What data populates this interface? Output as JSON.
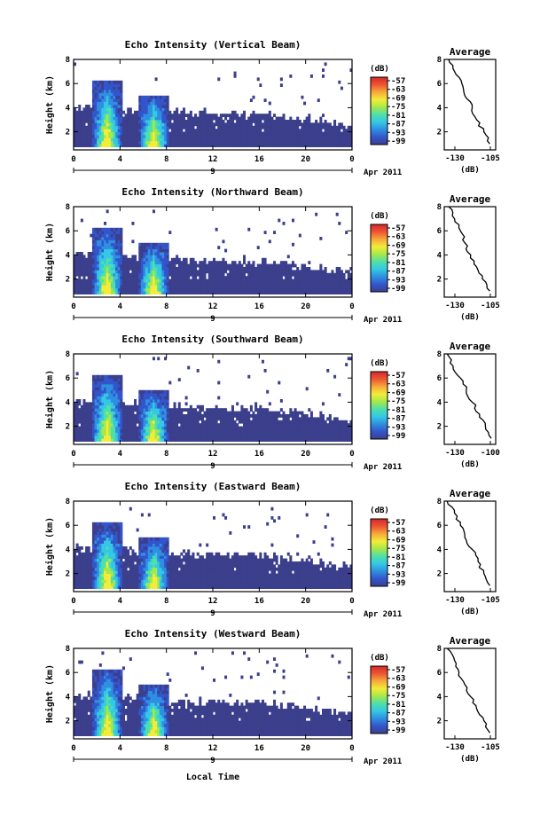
{
  "figure": {
    "xlabel": "Local Time",
    "date_label": "Apr 2011",
    "day_tick": "9",
    "ylabel": "Height (km)",
    "colorbar_unit": "(dB)",
    "colorbar_ticks": [
      "-57",
      "-63",
      "-69",
      "-75",
      "-81",
      "-87",
      "-93",
      "-99"
    ],
    "colormap": [
      "#3b3f8c",
      "#3355cc",
      "#2f8fe0",
      "#35c7e6",
      "#4fe0a8",
      "#a6e84a",
      "#f3ec3a",
      "#f7a93a",
      "#ee5533",
      "#d4282a"
    ],
    "x_ticks": [
      "0",
      "4",
      "8",
      "12",
      "16",
      "20",
      "0"
    ],
    "y_ticks": [
      "2",
      "4",
      "6",
      "8"
    ],
    "avg_title": "Average",
    "avg_xlabel": "(dB)"
  },
  "chart_data": [
    {
      "type": "heatmap",
      "title": "Echo Intensity (Vertical Beam)",
      "xlabel": "Local Time",
      "ylabel": "Height (km)",
      "xlim": [
        0,
        24
      ],
      "ylim": [
        0.5,
        8
      ],
      "colorbar_range": [
        -99,
        -57
      ],
      "bursts": [
        {
          "t": 2.8,
          "top": 6.2
        },
        {
          "t": 6.8,
          "top": 5.0
        }
      ],
      "profile": {
        "title": "Average",
        "xlabel": "(dB)",
        "xticks": [
          "-130",
          "-105"
        ],
        "xlim": [
          -135,
          -100
        ],
        "height": [
          1,
          2,
          3,
          4,
          5,
          6,
          7,
          8
        ],
        "value": [
          -104,
          -108,
          -113,
          -116,
          -121,
          -123,
          -128,
          -132
        ]
      }
    },
    {
      "type": "heatmap",
      "title": "Echo Intensity (Northward Beam)",
      "xlabel": "Local Time",
      "ylabel": "Height (km)",
      "xlim": [
        0,
        24
      ],
      "ylim": [
        0.5,
        8
      ],
      "colorbar_range": [
        -99,
        -57
      ],
      "bursts": [
        {
          "t": 2.8,
          "top": 6.2
        },
        {
          "t": 6.8,
          "top": 5.0
        }
      ],
      "profile": {
        "title": "Average",
        "xlabel": "(dB)",
        "xticks": [
          "-130",
          "-105"
        ],
        "xlim": [
          -135,
          -100
        ],
        "height": [
          1,
          2,
          3,
          4,
          5,
          6,
          7,
          8
        ],
        "value": [
          -104,
          -109,
          -113,
          -117,
          -121,
          -124,
          -128,
          -132
        ]
      }
    },
    {
      "type": "heatmap",
      "title": "Echo Intensity (Southward Beam)",
      "xlabel": "Local Time",
      "ylabel": "Height (km)",
      "xlim": [
        0,
        24
      ],
      "ylim": [
        0.5,
        8
      ],
      "colorbar_range": [
        -99,
        -57
      ],
      "bursts": [
        {
          "t": 2.8,
          "top": 6.2
        },
        {
          "t": 6.8,
          "top": 5.0
        }
      ],
      "profile": {
        "title": "Average",
        "xlabel": "(dB)",
        "xticks": [
          "-130",
          "-100"
        ],
        "xlim": [
          -135,
          -100
        ],
        "height": [
          1,
          2,
          3,
          4,
          5,
          6,
          7,
          8
        ],
        "value": [
          -103,
          -107,
          -111,
          -116,
          -120,
          -124,
          -129,
          -133
        ]
      }
    },
    {
      "type": "heatmap",
      "title": "Echo Intensity (Eastward Beam)",
      "xlabel": "Local Time",
      "ylabel": "Height (km)",
      "xlim": [
        0,
        24
      ],
      "ylim": [
        0.5,
        8
      ],
      "colorbar_range": [
        -99,
        -57
      ],
      "bursts": [
        {
          "t": 2.8,
          "top": 6.2
        },
        {
          "t": 6.8,
          "top": 5.0
        }
      ],
      "profile": {
        "title": "Average",
        "xlabel": "(dB)",
        "xticks": [
          "-130",
          "-105"
        ],
        "xlim": [
          -135,
          -100
        ],
        "height": [
          1,
          2,
          3,
          4,
          5,
          6,
          7,
          8
        ],
        "value": [
          -104,
          -108,
          -112,
          -116,
          -121,
          -124,
          -128,
          -133
        ]
      }
    },
    {
      "type": "heatmap",
      "title": "Echo Intensity (Westward Beam)",
      "xlabel": "Local Time",
      "ylabel": "Height (km)",
      "xlim": [
        0,
        24
      ],
      "ylim": [
        0.5,
        8
      ],
      "colorbar_range": [
        -99,
        -57
      ],
      "bursts": [
        {
          "t": 2.8,
          "top": 6.2
        },
        {
          "t": 6.8,
          "top": 5.0
        }
      ],
      "profile": {
        "title": "Average",
        "xlabel": "(dB)",
        "xticks": [
          "-130",
          "-105"
        ],
        "xlim": [
          -135,
          -100
        ],
        "height": [
          1,
          2,
          3,
          4,
          5,
          6,
          7,
          8
        ],
        "value": [
          -104,
          -108,
          -113,
          -117,
          -121,
          -125,
          -128,
          -133
        ]
      }
    }
  ]
}
